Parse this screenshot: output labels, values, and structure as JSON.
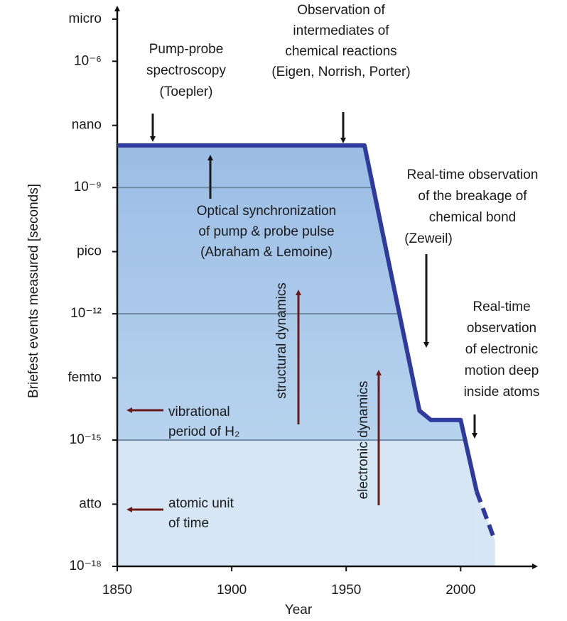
{
  "chart_data": {
    "type": "line",
    "x_label": "Year",
    "y_label": "Briefest events measured [seconds]",
    "log_y": true,
    "xlim": [
      1850,
      2030
    ],
    "xticks": [
      1850,
      1900,
      1950,
      2000
    ],
    "ylim": [
      1e-18,
      1e-05
    ],
    "yticks": [
      {
        "value": 1e-05,
        "label": "micro"
      },
      {
        "value": 1e-06,
        "label": "10⁻⁶"
      },
      {
        "value": 3e-08,
        "label": "nano"
      },
      {
        "value": 1e-09,
        "label": "10⁻⁹"
      },
      {
        "value": 3e-11,
        "label": "pico"
      },
      {
        "value": 1e-12,
        "label": "10⁻¹²"
      },
      {
        "value": 3e-14,
        "label": "femto"
      },
      {
        "value": 1e-15,
        "label": "10⁻¹⁵"
      },
      {
        "value": 3e-17,
        "label": "atto"
      },
      {
        "value": 1e-18,
        "label": "10⁻¹⁸"
      }
    ],
    "series": [
      {
        "color": "#2f3a9e",
        "dashed": false,
        "x": [
          1850,
          1958,
          1982,
          1987,
          2000,
          2007
        ],
        "values": [
          1e-08,
          1e-08,
          5e-15,
          3e-15,
          3e-15,
          6e-17
        ]
      },
      {
        "color": "#2f3a9e",
        "dashed": true,
        "x": [
          2007,
          2015
        ],
        "values": [
          6e-17,
          4e-18
        ]
      }
    ],
    "annotations": [
      {
        "lines": [
          "Pump-probe",
          "spectroscopy",
          "(Toepler)"
        ]
      },
      {
        "lines": [
          "Observation of",
          "intermediates of",
          "chemical reactions",
          "(Eigen, Norrish, Porter)"
        ]
      },
      {
        "lines": [
          "Optical synchronization",
          "of pump & probe pulse",
          "(Abraham & Lemoine)"
        ]
      },
      {
        "lines": [
          "Real-time observation",
          "of the breakage of",
          "chemical bond",
          "(Zeweil)"
        ]
      },
      {
        "lines": [
          "Real-time",
          "observation",
          "of electronic",
          "motion deep",
          "inside atoms"
        ]
      },
      {
        "lines": [
          "vibrational",
          "period of H₂"
        ]
      },
      {
        "lines": [
          "atomic unit",
          "of time"
        ]
      },
      {
        "lines": [
          "structural dynamics"
        ]
      },
      {
        "lines": [
          "electronic dynamics"
        ]
      }
    ]
  }
}
